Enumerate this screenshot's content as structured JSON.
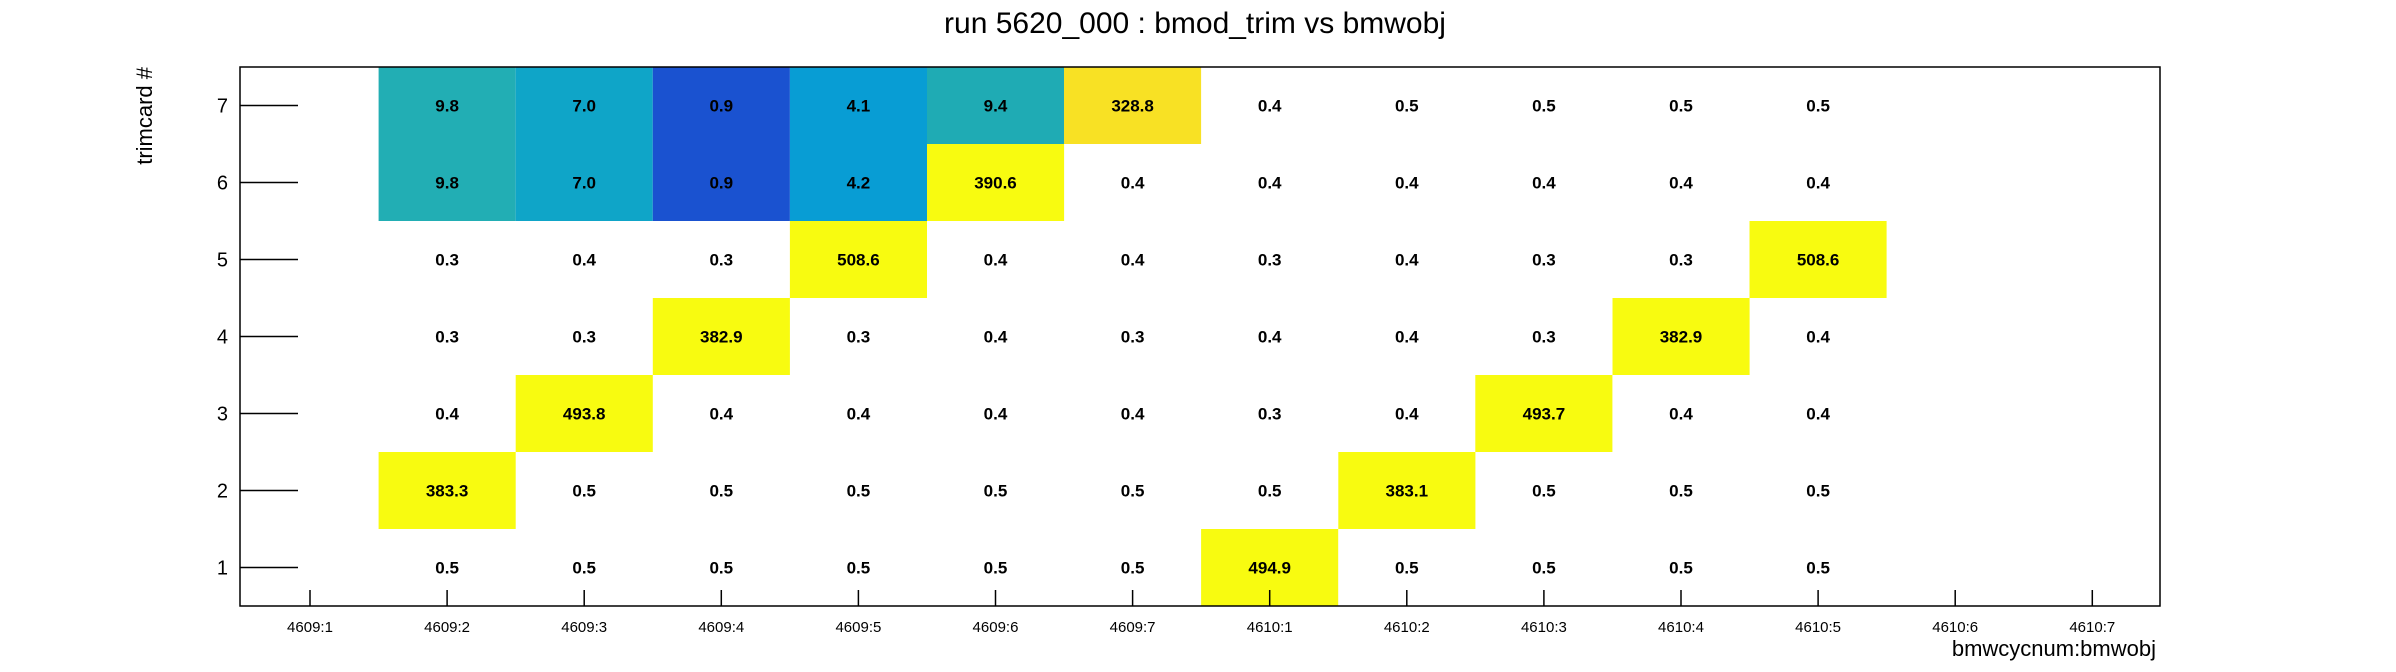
{
  "chart_data": {
    "type": "heatmap",
    "title": "run 5620_000 : bmod_trim vs bmwobj",
    "xlabel": "bmwcycnum:bmwobj",
    "ylabel": "trimcard #",
    "x_categories": [
      "4609:1",
      "4609:2",
      "4609:3",
      "4609:4",
      "4609:5",
      "4609:6",
      "4609:7",
      "4610:1",
      "4610:2",
      "4610:3",
      "4610:4",
      "4610:5",
      "4610:6",
      "4610:7"
    ],
    "y_categories": [
      "1",
      "2",
      "3",
      "4",
      "5",
      "6",
      "7"
    ],
    "cells": [
      {
        "x": "4609:2",
        "y": "7",
        "value": 9.8,
        "label": "9.8"
      },
      {
        "x": "4609:3",
        "y": "7",
        "value": 7.0,
        "label": "7.0"
      },
      {
        "x": "4609:4",
        "y": "7",
        "value": 0.9,
        "label": "0.9"
      },
      {
        "x": "4609:5",
        "y": "7",
        "value": 4.1,
        "label": "4.1"
      },
      {
        "x": "4609:6",
        "y": "7",
        "value": 9.4,
        "label": "9.4"
      },
      {
        "x": "4609:7",
        "y": "7",
        "value": 328.8,
        "label": "328.8"
      },
      {
        "x": "4610:1",
        "y": "7",
        "value": 0.4,
        "label": "0.4"
      },
      {
        "x": "4610:2",
        "y": "7",
        "value": 0.5,
        "label": "0.5"
      },
      {
        "x": "4610:3",
        "y": "7",
        "value": 0.5,
        "label": "0.5"
      },
      {
        "x": "4610:4",
        "y": "7",
        "value": 0.5,
        "label": "0.5"
      },
      {
        "x": "4610:5",
        "y": "7",
        "value": 0.5,
        "label": "0.5"
      },
      {
        "x": "4609:2",
        "y": "6",
        "value": 9.8,
        "label": "9.8"
      },
      {
        "x": "4609:3",
        "y": "6",
        "value": 7.0,
        "label": "7.0"
      },
      {
        "x": "4609:4",
        "y": "6",
        "value": 0.9,
        "label": "0.9"
      },
      {
        "x": "4609:5",
        "y": "6",
        "value": 4.2,
        "label": "4.2"
      },
      {
        "x": "4609:6",
        "y": "6",
        "value": 390.6,
        "label": "390.6"
      },
      {
        "x": "4609:7",
        "y": "6",
        "value": 0.4,
        "label": "0.4"
      },
      {
        "x": "4610:1",
        "y": "6",
        "value": 0.4,
        "label": "0.4"
      },
      {
        "x": "4610:2",
        "y": "6",
        "value": 0.4,
        "label": "0.4"
      },
      {
        "x": "4610:3",
        "y": "6",
        "value": 0.4,
        "label": "0.4"
      },
      {
        "x": "4610:4",
        "y": "6",
        "value": 0.4,
        "label": "0.4"
      },
      {
        "x": "4610:5",
        "y": "6",
        "value": 0.4,
        "label": "0.4"
      },
      {
        "x": "4609:2",
        "y": "5",
        "value": 0.3,
        "label": "0.3"
      },
      {
        "x": "4609:3",
        "y": "5",
        "value": 0.4,
        "label": "0.4"
      },
      {
        "x": "4609:4",
        "y": "5",
        "value": 0.3,
        "label": "0.3"
      },
      {
        "x": "4609:5",
        "y": "5",
        "value": 508.6,
        "label": "508.6"
      },
      {
        "x": "4609:6",
        "y": "5",
        "value": 0.4,
        "label": "0.4"
      },
      {
        "x": "4609:7",
        "y": "5",
        "value": 0.4,
        "label": "0.4"
      },
      {
        "x": "4610:1",
        "y": "5",
        "value": 0.3,
        "label": "0.3"
      },
      {
        "x": "4610:2",
        "y": "5",
        "value": 0.4,
        "label": "0.4"
      },
      {
        "x": "4610:3",
        "y": "5",
        "value": 0.3,
        "label": "0.3"
      },
      {
        "x": "4610:4",
        "y": "5",
        "value": 0.3,
        "label": "0.3"
      },
      {
        "x": "4610:5",
        "y": "5",
        "value": 508.6,
        "label": "508.6"
      },
      {
        "x": "4609:2",
        "y": "4",
        "value": 0.3,
        "label": "0.3"
      },
      {
        "x": "4609:3",
        "y": "4",
        "value": 0.3,
        "label": "0.3"
      },
      {
        "x": "4609:4",
        "y": "4",
        "value": 382.9,
        "label": "382.9"
      },
      {
        "x": "4609:5",
        "y": "4",
        "value": 0.3,
        "label": "0.3"
      },
      {
        "x": "4609:6",
        "y": "4",
        "value": 0.4,
        "label": "0.4"
      },
      {
        "x": "4609:7",
        "y": "4",
        "value": 0.3,
        "label": "0.3"
      },
      {
        "x": "4610:1",
        "y": "4",
        "value": 0.4,
        "label": "0.4"
      },
      {
        "x": "4610:2",
        "y": "4",
        "value": 0.4,
        "label": "0.4"
      },
      {
        "x": "4610:3",
        "y": "4",
        "value": 0.3,
        "label": "0.3"
      },
      {
        "x": "4610:4",
        "y": "4",
        "value": 382.9,
        "label": "382.9"
      },
      {
        "x": "4610:5",
        "y": "4",
        "value": 0.4,
        "label": "0.4"
      },
      {
        "x": "4609:2",
        "y": "3",
        "value": 0.4,
        "label": "0.4"
      },
      {
        "x": "4609:3",
        "y": "3",
        "value": 493.8,
        "label": "493.8"
      },
      {
        "x": "4609:4",
        "y": "3",
        "value": 0.4,
        "label": "0.4"
      },
      {
        "x": "4609:5",
        "y": "3",
        "value": 0.4,
        "label": "0.4"
      },
      {
        "x": "4609:6",
        "y": "3",
        "value": 0.4,
        "label": "0.4"
      },
      {
        "x": "4609:7",
        "y": "3",
        "value": 0.4,
        "label": "0.4"
      },
      {
        "x": "4610:1",
        "y": "3",
        "value": 0.3,
        "label": "0.3"
      },
      {
        "x": "4610:2",
        "y": "3",
        "value": 0.4,
        "label": "0.4"
      },
      {
        "x": "4610:3",
        "y": "3",
        "value": 493.7,
        "label": "493.7"
      },
      {
        "x": "4610:4",
        "y": "3",
        "value": 0.4,
        "label": "0.4"
      },
      {
        "x": "4610:5",
        "y": "3",
        "value": 0.4,
        "label": "0.4"
      },
      {
        "x": "4609:2",
        "y": "2",
        "value": 383.3,
        "label": "383.3"
      },
      {
        "x": "4609:3",
        "y": "2",
        "value": 0.5,
        "label": "0.5"
      },
      {
        "x": "4609:4",
        "y": "2",
        "value": 0.5,
        "label": "0.5"
      },
      {
        "x": "4609:5",
        "y": "2",
        "value": 0.5,
        "label": "0.5"
      },
      {
        "x": "4609:6",
        "y": "2",
        "value": 0.5,
        "label": "0.5"
      },
      {
        "x": "4609:7",
        "y": "2",
        "value": 0.5,
        "label": "0.5"
      },
      {
        "x": "4610:1",
        "y": "2",
        "value": 0.5,
        "label": "0.5"
      },
      {
        "x": "4610:2",
        "y": "2",
        "value": 383.1,
        "label": "383.1"
      },
      {
        "x": "4610:3",
        "y": "2",
        "value": 0.5,
        "label": "0.5"
      },
      {
        "x": "4610:4",
        "y": "2",
        "value": 0.5,
        "label": "0.5"
      },
      {
        "x": "4610:5",
        "y": "2",
        "value": 0.5,
        "label": "0.5"
      },
      {
        "x": "4609:2",
        "y": "1",
        "value": 0.5,
        "label": "0.5"
      },
      {
        "x": "4609:3",
        "y": "1",
        "value": 0.5,
        "label": "0.5"
      },
      {
        "x": "4609:4",
        "y": "1",
        "value": 0.5,
        "label": "0.5"
      },
      {
        "x": "4609:5",
        "y": "1",
        "value": 0.5,
        "label": "0.5"
      },
      {
        "x": "4609:6",
        "y": "1",
        "value": 0.5,
        "label": "0.5"
      },
      {
        "x": "4609:7",
        "y": "1",
        "value": 0.5,
        "label": "0.5"
      },
      {
        "x": "4610:1",
        "y": "1",
        "value": 494.9,
        "label": "494.9"
      },
      {
        "x": "4610:2",
        "y": "1",
        "value": 0.5,
        "label": "0.5"
      },
      {
        "x": "4610:3",
        "y": "1",
        "value": 0.5,
        "label": "0.5"
      },
      {
        "x": "4610:4",
        "y": "1",
        "value": 0.5,
        "label": "0.5"
      },
      {
        "x": "4610:5",
        "y": "1",
        "value": 0.5,
        "label": "0.5"
      }
    ],
    "cell_colors": {
      "4609:2|7": "#22aeb4",
      "4609:2|6": "#22aeb4",
      "4609:3|7": "#0fa5c8",
      "4609:3|6": "#0fa5c8",
      "4609:4|7": "#1a52d0",
      "4609:4|6": "#1a52d0",
      "4609:5|7": "#089dd4",
      "4609:5|6": "#089dd4",
      "4609:6|7": "#1fabb4",
      "4609:6|6": "#f8fb10",
      "4609:7|7": "#f8e124",
      "4609:5|5": "#f8fb10",
      "4610:5|5": "#f8fb10",
      "4609:4|4": "#f8fb10",
      "4610:4|4": "#f8fb10",
      "4609:3|3": "#f8fb10",
      "4610:3|3": "#f8fb10",
      "4609:2|2": "#f8fb10",
      "4610:2|2": "#f8fb10",
      "4610:1|1": "#f8fb10"
    },
    "axis_color": "#000000",
    "background_color": "#ffffff"
  }
}
